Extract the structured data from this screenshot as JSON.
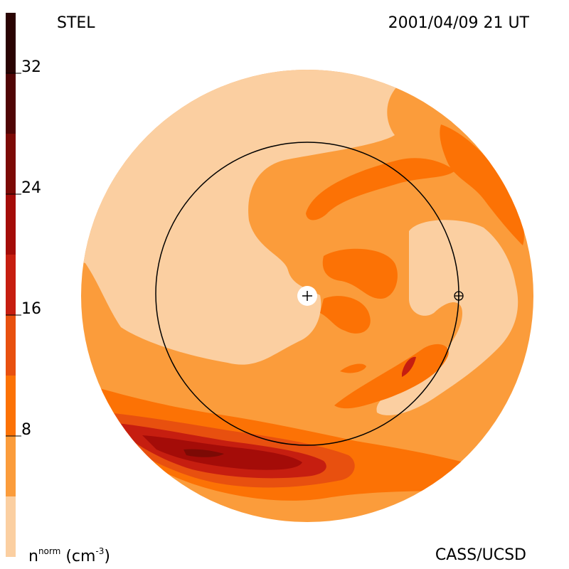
{
  "header": {
    "left_label": "STEL",
    "right_label": "2001/04/09 21 UT"
  },
  "footer": {
    "credit": "CASS/UCSD"
  },
  "colorbar": {
    "title_main": "n",
    "title_sup": "norm",
    "title_unit_pre": "(cm",
    "title_unit_sup": "-3",
    "title_unit_post": ")",
    "ticks": [
      {
        "label": "8",
        "value": 8
      },
      {
        "label": "16",
        "value": 16
      },
      {
        "label": "24",
        "value": 24
      },
      {
        "label": "32",
        "value": 32
      }
    ],
    "range": [
      0,
      36
    ],
    "bands": [
      {
        "from": 0,
        "to": 4,
        "color": "#fbcfa1"
      },
      {
        "from": 4,
        "to": 8,
        "color": "#fb9c3b"
      },
      {
        "from": 8,
        "to": 12,
        "color": "#fc7205"
      },
      {
        "from": 12,
        "to": 16,
        "color": "#e8500f"
      },
      {
        "from": 16,
        "to": 20,
        "color": "#c61e10"
      },
      {
        "from": 20,
        "to": 24,
        "color": "#a40c08"
      },
      {
        "from": 24,
        "to": 28,
        "color": "#7c0a05"
      },
      {
        "from": 28,
        "to": 32,
        "color": "#500505"
      },
      {
        "from": 32,
        "to": 36,
        "color": "#2a0403"
      }
    ]
  },
  "map": {
    "markers": [
      {
        "name": "sun",
        "symbol": "+"
      },
      {
        "name": "earth",
        "symbol": "⊕"
      }
    ],
    "orbit": "earth-orbit-circle"
  }
}
